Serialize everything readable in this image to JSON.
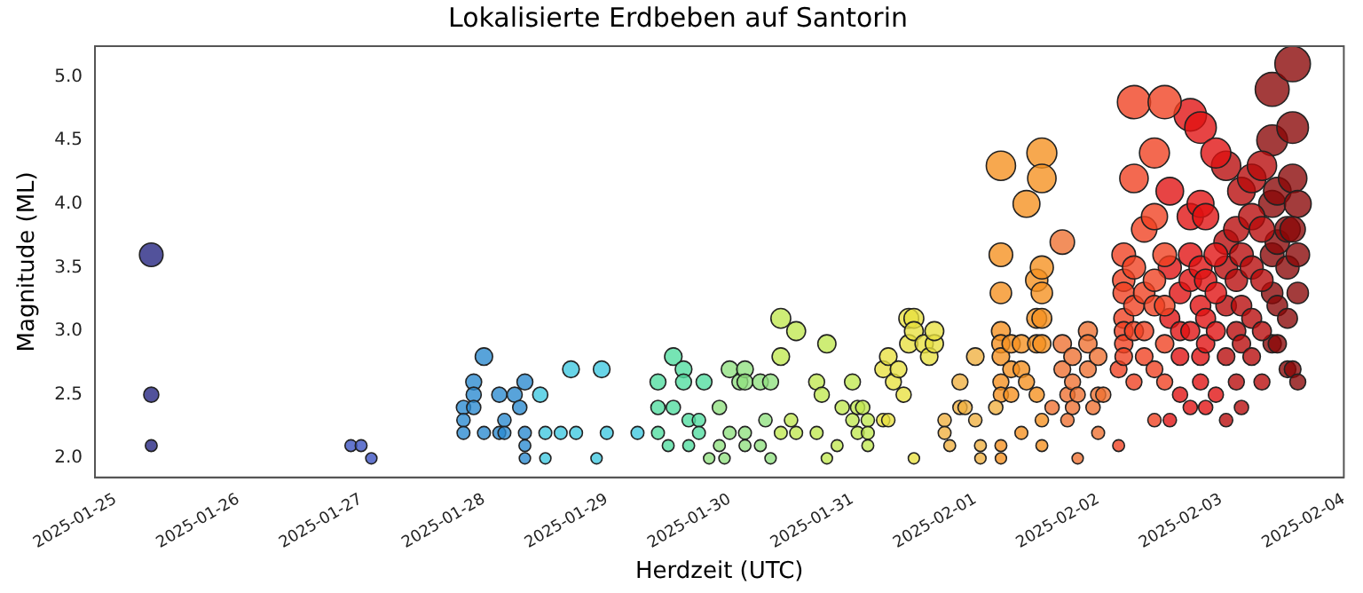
{
  "chart_data": {
    "type": "bubble",
    "title": "Lokalisierte Erdbeben auf Santorin",
    "xlabel": "Herdzeit (UTC)",
    "ylabel": "Magnitude (ML)",
    "marker": "circle",
    "xlim": [
      "2025-01-24T20:00",
      "2025-02-04T00:00"
    ],
    "xticks": [
      "2025-01-25",
      "2025-01-26",
      "2025-01-27",
      "2025-01-28",
      "2025-01-29",
      "2025-01-30",
      "2025-01-31",
      "2025-02-01",
      "2025-02-02",
      "2025-02-03",
      "2025-02-04"
    ],
    "ylim": [
      1.85,
      5.24
    ],
    "yticks": [
      {
        "value": 2,
        "label": "2.0"
      },
      {
        "value": 2.5,
        "label": "2.5"
      },
      {
        "value": 3,
        "label": "3.0"
      },
      {
        "value": 3.5,
        "label": "3.5"
      },
      {
        "value": 4,
        "label": "4.0"
      },
      {
        "value": 4.5,
        "label": "4.5"
      },
      {
        "value": 5,
        "label": "5.0"
      }
    ],
    "series": [
      {
        "color": "#232380",
        "x": [
          "2025-01-25T07:00",
          "2025-01-25T07:00",
          "2025-01-25T07:00"
        ],
        "values": [
          3.6,
          2.5,
          2.1
        ],
        "sizes": [
          0.44,
          0.18,
          0.11
        ]
      },
      {
        "color": "#3a50c0",
        "x": [
          "2025-01-26T22:00",
          "2025-01-27T00:00",
          "2025-01-27T02:00"
        ],
        "values": [
          2.1,
          2.1,
          2.0
        ],
        "sizes": [
          0.11,
          0.11,
          0.1
        ]
      },
      {
        "color": "#2a8ad0",
        "x": [
          "2025-01-27T20:00",
          "2025-01-27T20:00",
          "2025-01-27T20:00",
          "2025-01-27T22:00",
          "2025-01-27T22:00",
          "2025-01-27T22:00",
          "2025-01-28T00:00",
          "2025-01-28T00:00",
          "2025-01-28T03:00",
          "2025-01-28T03:00",
          "2025-01-28T04:00",
          "2025-01-28T04:00",
          "2025-01-28T06:00",
          "2025-01-28T07:00",
          "2025-01-28T08:00",
          "2025-01-28T08:00",
          "2025-01-28T08:00",
          "2025-01-28T08:00"
        ],
        "values": [
          2.4,
          2.3,
          2.2,
          2.6,
          2.5,
          2.4,
          2.8,
          2.2,
          2.5,
          2.2,
          2.3,
          2.2,
          2.5,
          2.4,
          2.6,
          2.2,
          2.1,
          2.0
        ],
        "sizes": [
          0.16,
          0.14,
          0.13,
          0.2,
          0.18,
          0.16,
          0.24,
          0.13,
          0.18,
          0.13,
          0.14,
          0.13,
          0.18,
          0.16,
          0.2,
          0.13,
          0.11,
          0.1
        ]
      },
      {
        "color": "#3ec8e0",
        "x": [
          "2025-01-28T11:00",
          "2025-01-28T12:00",
          "2025-01-28T12:00",
          "2025-01-28T15:00",
          "2025-01-28T17:00",
          "2025-01-28T18:00",
          "2025-01-28T22:00",
          "2025-01-28T23:00",
          "2025-01-29T00:00",
          "2025-01-29T06:00"
        ],
        "values": [
          2.5,
          2.2,
          2.0,
          2.2,
          2.7,
          2.2,
          2.0,
          2.7,
          2.2,
          2.2
        ],
        "sizes": [
          0.18,
          0.13,
          0.1,
          0.13,
          0.22,
          0.13,
          0.1,
          0.22,
          0.13,
          0.13
        ]
      },
      {
        "color": "#50dca0",
        "x": [
          "2025-01-29T10:00",
          "2025-01-29T10:00",
          "2025-01-29T10:00",
          "2025-01-29T12:00",
          "2025-01-29T13:00",
          "2025-01-29T13:00",
          "2025-01-29T15:00",
          "2025-01-29T15:00",
          "2025-01-29T16:00",
          "2025-01-29T16:00",
          "2025-01-29T18:00",
          "2025-01-29T18:00",
          "2025-01-29T19:00"
        ],
        "values": [
          2.6,
          2.4,
          2.2,
          2.1,
          2.8,
          2.4,
          2.7,
          2.6,
          2.3,
          2.1,
          2.3,
          2.2,
          2.6
        ],
        "sizes": [
          0.2,
          0.16,
          0.13,
          0.11,
          0.24,
          0.16,
          0.22,
          0.2,
          0.14,
          0.11,
          0.14,
          0.13,
          0.2
        ]
      },
      {
        "color": "#90e080",
        "x": [
          "2025-01-29T20:00",
          "2025-01-29T22:00",
          "2025-01-29T22:00",
          "2025-01-29T23:00",
          "2025-01-30T00:00",
          "2025-01-30T00:00",
          "2025-01-30T02:00",
          "2025-01-30T03:00",
          "2025-01-30T03:00",
          "2025-01-30T03:00",
          "2025-01-30T03:00",
          "2025-01-30T06:00",
          "2025-01-30T06:00",
          "2025-01-30T07:00",
          "2025-01-30T08:00",
          "2025-01-30T08:00"
        ],
        "values": [
          2.0,
          2.1,
          2.4,
          2.0,
          2.7,
          2.2,
          2.6,
          2.1,
          2.7,
          2.6,
          2.2,
          2.6,
          2.1,
          2.3,
          2.6,
          2.0
        ],
        "sizes": [
          0.1,
          0.11,
          0.16,
          0.1,
          0.22,
          0.13,
          0.2,
          0.11,
          0.22,
          0.2,
          0.13,
          0.2,
          0.11,
          0.14,
          0.2,
          0.1
        ]
      },
      {
        "color": "#c0e850",
        "x": [
          "2025-01-30T10:00",
          "2025-01-30T10:00",
          "2025-01-30T10:00",
          "2025-01-30T12:00",
          "2025-01-30T13:00",
          "2025-01-30T13:00",
          "2025-01-30T17:00",
          "2025-01-30T17:00",
          "2025-01-30T18:00",
          "2025-01-30T19:00",
          "2025-01-30T19:00",
          "2025-01-30T21:00",
          "2025-01-30T22:00",
          "2025-01-31T00:00",
          "2025-01-31T00:00",
          "2025-01-31T01:00",
          "2025-01-31T01:00",
          "2025-01-31T02:00",
          "2025-01-31T03:00",
          "2025-01-31T03:00",
          "2025-01-31T03:00"
        ],
        "values": [
          3.1,
          2.8,
          2.2,
          2.3,
          2.2,
          3.0,
          2.6,
          2.2,
          2.5,
          2.9,
          2.0,
          2.1,
          2.4,
          2.6,
          2.3,
          2.4,
          2.2,
          2.4,
          2.3,
          2.2,
          2.1
        ],
        "sizes": [
          0.31,
          0.24,
          0.13,
          0.14,
          0.13,
          0.28,
          0.2,
          0.13,
          0.18,
          0.26,
          0.1,
          0.11,
          0.16,
          0.2,
          0.14,
          0.16,
          0.13,
          0.16,
          0.14,
          0.13,
          0.11
        ]
      },
      {
        "color": "#e8e040",
        "x": [
          "2025-01-31T06:00",
          "2025-01-31T06:00",
          "2025-01-31T07:00",
          "2025-01-31T07:00",
          "2025-01-31T08:00",
          "2025-01-31T09:00",
          "2025-01-31T10:00",
          "2025-01-31T11:00",
          "2025-01-31T11:00",
          "2025-01-31T12:00",
          "2025-01-31T12:00",
          "2025-01-31T12:00",
          "2025-01-31T14:00",
          "2025-01-31T15:00",
          "2025-01-31T16:00",
          "2025-01-31T16:00"
        ],
        "values": [
          2.7,
          2.3,
          2.3,
          2.8,
          2.6,
          2.7,
          2.5,
          3.1,
          2.9,
          2.0,
          3.1,
          3.0,
          2.9,
          2.8,
          2.9,
          3.0
        ],
        "sizes": [
          0.22,
          0.14,
          0.14,
          0.24,
          0.2,
          0.22,
          0.18,
          0.31,
          0.26,
          0.1,
          0.31,
          0.28,
          0.26,
          0.24,
          0.26,
          0.28
        ]
      },
      {
        "color": "#f0b040",
        "x": [
          "2025-01-31T18:00",
          "2025-01-31T18:00",
          "2025-01-31T19:00",
          "2025-01-31T21:00",
          "2025-01-31T21:00",
          "2025-01-31T22:00",
          "2025-02-01T00:00",
          "2025-02-01T00:00",
          "2025-02-01T01:00",
          "2025-02-01T01:00",
          "2025-02-01T04:00"
        ],
        "values": [
          2.3,
          2.2,
          2.1,
          2.4,
          2.6,
          2.4,
          2.3,
          2.8,
          2.1,
          2.0,
          2.4
        ],
        "sizes": [
          0.14,
          0.13,
          0.11,
          0.16,
          0.2,
          0.16,
          0.14,
          0.24,
          0.11,
          0.1,
          0.16
        ]
      },
      {
        "color": "#f5901e",
        "x": [
          "2025-02-01T05:00",
          "2025-02-01T05:00",
          "2025-02-01T05:00",
          "2025-02-01T05:00",
          "2025-02-01T05:00",
          "2025-02-01T05:00",
          "2025-02-01T05:00",
          "2025-02-01T05:00",
          "2025-02-01T05:00",
          "2025-02-01T05:00",
          "2025-02-01T07:00",
          "2025-02-01T07:00",
          "2025-02-01T07:00",
          "2025-02-01T09:00",
          "2025-02-01T09:00",
          "2025-02-01T09:00",
          "2025-02-01T10:00",
          "2025-02-01T10:00",
          "2025-02-01T12:00",
          "2025-02-01T12:00",
          "2025-02-01T12:00",
          "2025-02-01T12:00",
          "2025-02-01T13:00",
          "2025-02-01T13:00",
          "2025-02-01T13:00",
          "2025-02-01T13:00",
          "2025-02-01T13:00",
          "2025-02-01T13:00",
          "2025-02-01T13:00",
          "2025-02-01T13:00"
        ],
        "values": [
          4.3,
          3.6,
          3.3,
          3.0,
          2.9,
          2.8,
          2.6,
          2.5,
          2.1,
          2.0,
          2.9,
          2.7,
          2.5,
          2.9,
          2.7,
          2.2,
          4.0,
          2.6,
          3.4,
          3.1,
          2.9,
          2.5,
          4.4,
          4.2,
          3.5,
          3.3,
          3.1,
          2.9,
          2.3,
          2.1
        ],
        "sizes": [
          0.68,
          0.44,
          0.36,
          0.28,
          0.26,
          0.24,
          0.2,
          0.18,
          0.11,
          0.1,
          0.26,
          0.22,
          0.18,
          0.26,
          0.22,
          0.13,
          0.57,
          0.2,
          0.39,
          0.31,
          0.26,
          0.18,
          0.71,
          0.64,
          0.42,
          0.36,
          0.31,
          0.26,
          0.14,
          0.11
        ]
      },
      {
        "color": "#ee7030",
        "x": [
          "2025-02-01T15:00",
          "2025-02-01T17:00",
          "2025-02-01T17:00",
          "2025-02-01T17:00",
          "2025-02-01T18:00",
          "2025-02-01T18:00",
          "2025-02-01T19:00",
          "2025-02-01T19:00",
          "2025-02-01T19:00",
          "2025-02-01T20:00",
          "2025-02-01T20:00",
          "2025-02-01T22:00",
          "2025-02-01T22:00",
          "2025-02-01T22:00",
          "2025-02-01T23:00",
          "2025-02-02T00:00",
          "2025-02-02T00:00",
          "2025-02-02T00:00",
          "2025-02-02T01:00"
        ],
        "values": [
          2.4,
          3.7,
          2.9,
          2.7,
          2.5,
          2.3,
          2.8,
          2.6,
          2.4,
          2.5,
          2.0,
          3.0,
          2.9,
          2.7,
          2.4,
          2.8,
          2.5,
          2.2,
          2.5
        ],
        "sizes": [
          0.16,
          0.47,
          0.26,
          0.22,
          0.18,
          0.14,
          0.24,
          0.2,
          0.16,
          0.18,
          0.1,
          0.28,
          0.26,
          0.22,
          0.16,
          0.24,
          0.18,
          0.13,
          0.18
        ]
      },
      {
        "color": "#f04020",
        "x": [
          "2025-02-02T04:00",
          "2025-02-02T04:00",
          "2025-02-02T05:00",
          "2025-02-02T05:00",
          "2025-02-02T05:00",
          "2025-02-02T05:00",
          "2025-02-02T05:00",
          "2025-02-02T05:00",
          "2025-02-02T05:00",
          "2025-02-02T07:00",
          "2025-02-02T07:00",
          "2025-02-02T07:00",
          "2025-02-02T07:00",
          "2025-02-02T07:00",
          "2025-02-02T07:00",
          "2025-02-02T09:00",
          "2025-02-02T09:00",
          "2025-02-02T09:00",
          "2025-02-02T09:00",
          "2025-02-02T11:00",
          "2025-02-02T11:00",
          "2025-02-02T11:00",
          "2025-02-02T11:00",
          "2025-02-02T11:00",
          "2025-02-02T11:00",
          "2025-02-02T13:00",
          "2025-02-02T13:00",
          "2025-02-02T13:00",
          "2025-02-02T13:00",
          "2025-02-02T13:00"
        ],
        "values": [
          2.7,
          2.1,
          3.6,
          3.4,
          3.3,
          3.1,
          3.0,
          2.9,
          2.8,
          4.8,
          4.2,
          3.5,
          3.2,
          3.0,
          2.6,
          3.8,
          3.3,
          3.0,
          2.8,
          4.4,
          3.9,
          3.4,
          3.2,
          2.7,
          2.3,
          4.8,
          3.6,
          3.2,
          2.9,
          2.6
        ],
        "sizes": [
          0.22,
          0.11,
          0.44,
          0.39,
          0.36,
          0.31,
          0.28,
          0.26,
          0.24,
          0.87,
          0.64,
          0.42,
          0.33,
          0.28,
          0.2,
          0.51,
          0.36,
          0.28,
          0.24,
          0.71,
          0.54,
          0.39,
          0.33,
          0.22,
          0.14,
          0.87,
          0.44,
          0.33,
          0.26,
          0.2
        ]
      },
      {
        "color": "#e01010",
        "x": [
          "2025-02-02T14:00",
          "2025-02-02T14:00",
          "2025-02-02T14:00",
          "2025-02-02T14:00",
          "2025-02-02T16:00",
          "2025-02-02T16:00",
          "2025-02-02T16:00",
          "2025-02-02T16:00",
          "2025-02-02T18:00",
          "2025-02-02T18:00",
          "2025-02-02T18:00",
          "2025-02-02T18:00",
          "2025-02-02T18:00",
          "2025-02-02T18:00",
          "2025-02-02T20:00",
          "2025-02-02T20:00",
          "2025-02-02T20:00",
          "2025-02-02T20:00",
          "2025-02-02T20:00",
          "2025-02-02T20:00",
          "2025-02-02T21:00",
          "2025-02-02T21:00",
          "2025-02-02T21:00",
          "2025-02-02T21:00",
          "2025-02-02T21:00",
          "2025-02-02T23:00",
          "2025-02-02T23:00",
          "2025-02-02T23:00",
          "2025-02-02T23:00",
          "2025-02-02T23:00"
        ],
        "values": [
          4.1,
          3.5,
          3.1,
          2.3,
          3.3,
          3.0,
          2.8,
          2.5,
          4.7,
          3.9,
          3.6,
          3.4,
          3.0,
          2.4,
          4.6,
          4.0,
          3.5,
          3.2,
          2.8,
          2.6,
          3.9,
          3.4,
          3.1,
          2.9,
          2.4,
          4.4,
          3.6,
          3.3,
          3.0,
          2.5
        ],
        "sizes": [
          0.6,
          0.42,
          0.31,
          0.14,
          0.36,
          0.28,
          0.24,
          0.18,
          0.83,
          0.54,
          0.44,
          0.39,
          0.28,
          0.16,
          0.79,
          0.57,
          0.42,
          0.33,
          0.24,
          0.2,
          0.54,
          0.39,
          0.31,
          0.26,
          0.16,
          0.71,
          0.44,
          0.36,
          0.28,
          0.18
        ]
      },
      {
        "color": "#b80a0a",
        "x": [
          "2025-02-03T01:00",
          "2025-02-03T01:00",
          "2025-02-03T01:00",
          "2025-02-03T01:00",
          "2025-02-03T01:00",
          "2025-02-03T01:00",
          "2025-02-03T03:00",
          "2025-02-03T03:00",
          "2025-02-03T03:00",
          "2025-02-03T03:00",
          "2025-02-03T04:00",
          "2025-02-03T04:00",
          "2025-02-03T04:00",
          "2025-02-03T04:00",
          "2025-02-03T04:00",
          "2025-02-03T06:00",
          "2025-02-03T06:00",
          "2025-02-03T06:00",
          "2025-02-03T06:00",
          "2025-02-03T06:00",
          "2025-02-03T08:00",
          "2025-02-03T08:00",
          "2025-02-03T08:00",
          "2025-02-03T08:00",
          "2025-02-03T08:00"
        ],
        "values": [
          4.3,
          3.7,
          3.5,
          3.2,
          2.8,
          2.3,
          3.8,
          3.4,
          3.0,
          2.6,
          4.1,
          3.6,
          3.2,
          2.9,
          2.4,
          4.2,
          3.9,
          3.5,
          3.1,
          2.8,
          4.3,
          3.8,
          3.4,
          3.0,
          2.6
        ],
        "sizes": [
          0.68,
          0.47,
          0.42,
          0.33,
          0.24,
          0.14,
          0.51,
          0.39,
          0.28,
          0.2,
          0.6,
          0.44,
          0.33,
          0.26,
          0.16,
          0.64,
          0.54,
          0.42,
          0.31,
          0.24,
          0.68,
          0.51,
          0.39,
          0.28,
          0.2
        ]
      },
      {
        "color": "#8a0606",
        "x": [
          "2025-02-03T10:00",
          "2025-02-03T10:00",
          "2025-02-03T10:00",
          "2025-02-03T10:00",
          "2025-02-03T10:00",
          "2025-02-03T10:00",
          "2025-02-03T11:00",
          "2025-02-03T11:00",
          "2025-02-03T11:00",
          "2025-02-03T11:00",
          "2025-02-03T13:00",
          "2025-02-03T13:00",
          "2025-02-03T13:00",
          "2025-02-03T13:00",
          "2025-02-03T14:00",
          "2025-02-03T14:00",
          "2025-02-03T14:00",
          "2025-02-03T14:00",
          "2025-02-03T14:00",
          "2025-02-03T15:00",
          "2025-02-03T15:00",
          "2025-02-03T15:00",
          "2025-02-03T15:00"
        ],
        "values": [
          4.9,
          4.5,
          4.0,
          3.6,
          3.3,
          2.9,
          4.1,
          3.7,
          3.2,
          2.9,
          3.8,
          3.5,
          3.1,
          2.7,
          5.1,
          4.6,
          4.2,
          3.8,
          2.7,
          4.0,
          3.6,
          3.3,
          2.6
        ],
        "sizes": [
          0.91,
          0.75,
          0.57,
          0.44,
          0.36,
          0.26,
          0.6,
          0.47,
          0.33,
          0.26,
          0.51,
          0.42,
          0.31,
          0.22,
          1.0,
          0.79,
          0.64,
          0.51,
          0.22,
          0.57,
          0.44,
          0.36,
          0.2
        ]
      }
    ]
  }
}
